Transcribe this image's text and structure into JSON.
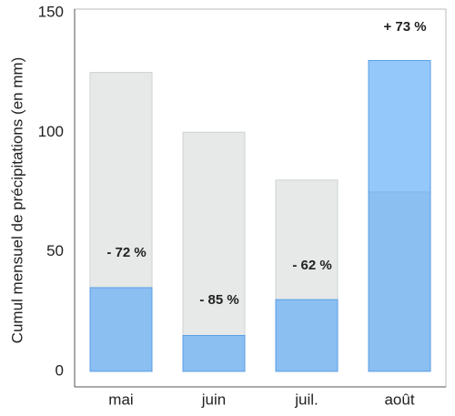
{
  "chart_data": {
    "type": "bar",
    "y_label": "Cumul mensuel de précipitations (en mm)",
    "categories": [
      "mai",
      "juin",
      "juil.",
      "août"
    ],
    "series": [
      {
        "color": "#e6e9e8",
        "values": [
          125,
          100,
          80,
          75
        ]
      },
      {
        "color": "#4fa3f7",
        "values": [
          35,
          15,
          30,
          130
        ]
      }
    ],
    "annotations": [
      "- 72 %",
      "- 85 %",
      "- 62 %",
      "+ 73 %"
    ],
    "ylim": [
      -6.5,
      151.5
    ],
    "yticks": [
      0,
      50,
      100,
      150
    ]
  }
}
